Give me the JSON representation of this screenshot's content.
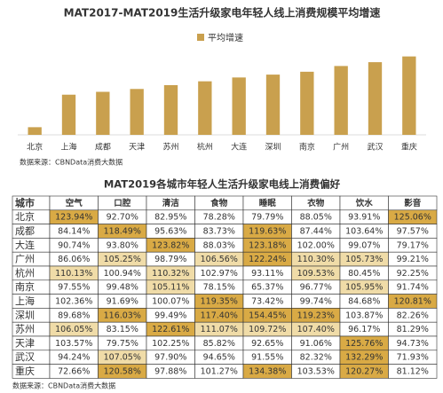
{
  "chart_data": {
    "type": "bar",
    "title": "MAT2017-MAT2019生活升级家电年轻人线上消费规模平均增速",
    "legend": "平均增速",
    "color": "#c9a04e",
    "categories": [
      "北京",
      "上海",
      "成都",
      "天津",
      "苏州",
      "杭州",
      "大连",
      "深圳",
      "南京",
      "广州",
      "武汉",
      "重庆"
    ],
    "values": [
      8,
      42,
      45,
      48,
      52,
      56,
      60,
      63,
      66,
      72,
      76,
      82
    ],
    "ylim": [
      0,
      90
    ],
    "source": "数据来源：CBNData消费大数据"
  },
  "table": {
    "title": "MAT2019各城市年轻人生活升级家电线上消费偏好",
    "header": [
      "城市",
      "空气",
      "口腔",
      "清洁",
      "食物",
      "睡眠",
      "衣物",
      "饮水",
      "影音"
    ],
    "rows": [
      [
        "北京",
        "123.94%",
        "92.70%",
        "82.95%",
        "78.28%",
        "79.79%",
        "88.05%",
        "93.91%",
        "125.06%"
      ],
      [
        "成都",
        "84.14%",
        "118.49%",
        "95.63%",
        "83.73%",
        "119.63%",
        "87.44%",
        "103.64%",
        "97.57%"
      ],
      [
        "大连",
        "90.74%",
        "93.80%",
        "123.82%",
        "88.03%",
        "123.18%",
        "102.00%",
        "99.07%",
        "79.17%"
      ],
      [
        "广州",
        "86.06%",
        "105.25%",
        "98.79%",
        "106.56%",
        "122.24%",
        "110.30%",
        "105.73%",
        "99.21%"
      ],
      [
        "杭州",
        "110.13%",
        "100.94%",
        "110.32%",
        "102.97%",
        "93.11%",
        "109.53%",
        "80.45%",
        "92.25%"
      ],
      [
        "南京",
        "97.55%",
        "99.48%",
        "105.11%",
        "78.15%",
        "65.37%",
        "96.77%",
        "105.95%",
        "91.74%"
      ],
      [
        "上海",
        "102.36%",
        "91.69%",
        "100.07%",
        "119.35%",
        "73.42%",
        "99.74%",
        "84.68%",
        "120.81%"
      ],
      [
        "深圳",
        "89.68%",
        "116.03%",
        "99.49%",
        "117.40%",
        "154.45%",
        "119.23%",
        "103.87%",
        "82.26%"
      ],
      [
        "苏州",
        "106.05%",
        "83.15%",
        "122.61%",
        "111.07%",
        "109.72%",
        "107.40%",
        "96.17%",
        "81.29%"
      ],
      [
        "天津",
        "103.57%",
        "79.75%",
        "102.25%",
        "85.82%",
        "92.65%",
        "91.06%",
        "125.76%",
        "94.73%"
      ],
      [
        "武汉",
        "94.24%",
        "107.05%",
        "97.90%",
        "94.65%",
        "91.55%",
        "82.32%",
        "132.29%",
        "71.93%"
      ],
      [
        "重庆",
        "72.66%",
        "120.58%",
        "97.88%",
        "101.27%",
        "134.38%",
        "103.53%",
        "120.27%",
        "81.12%"
      ]
    ],
    "source": "数据来源：CBNData消费大数据"
  }
}
